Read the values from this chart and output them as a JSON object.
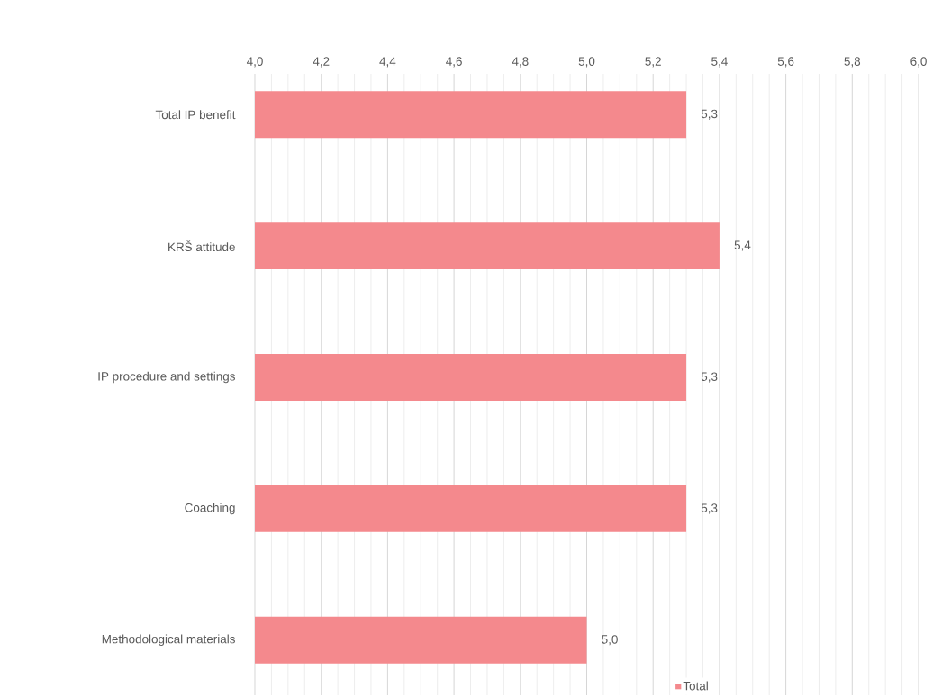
{
  "chart_data": {
    "type": "bar",
    "orientation": "horizontal",
    "categories": [
      "Total IP benefit",
      "KRŠ attitude",
      "IP procedure and settings",
      "Coaching",
      "Methodological materials"
    ],
    "series": [
      {
        "name": "Total",
        "color": "#f4898d",
        "values": [
          5.3,
          5.4,
          5.3,
          5.3,
          5.0
        ],
        "value_labels": [
          "5,3",
          "5,4",
          "5,3",
          "5,3",
          "5,0"
        ]
      }
    ],
    "xlim": [
      4.0,
      6.0
    ],
    "xticks": [
      {
        "value": 4.0,
        "label": "4,0"
      },
      {
        "value": 4.2,
        "label": "4,2"
      },
      {
        "value": 4.4,
        "label": "4,4"
      },
      {
        "value": 4.6,
        "label": "4,6"
      },
      {
        "value": 4.8,
        "label": "4,8"
      },
      {
        "value": 5.0,
        "label": "5,0"
      },
      {
        "value": 5.2,
        "label": "5,2"
      },
      {
        "value": 5.4,
        "label": "5,4"
      },
      {
        "value": 5.6,
        "label": "5,6"
      },
      {
        "value": 5.8,
        "label": "5,8"
      },
      {
        "value": 6.0,
        "label": "6,0"
      }
    ],
    "grid": "x",
    "legend": "bottom"
  }
}
